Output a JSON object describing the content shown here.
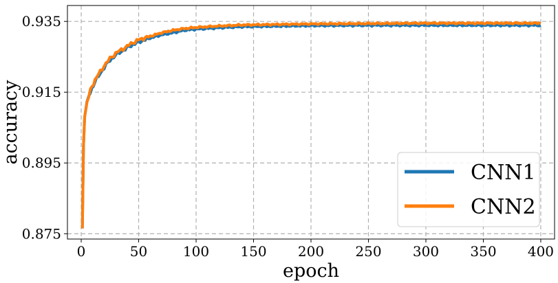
{
  "chart_data": {
    "type": "line",
    "xlabel": "epoch",
    "ylabel": "accuracy",
    "xlim": [
      -12,
      412
    ],
    "ylim": [
      0.8735,
      0.9395
    ],
    "xticks": [
      0,
      50,
      100,
      150,
      200,
      250,
      300,
      350,
      400
    ],
    "yticks": [
      0.875,
      0.895,
      0.915,
      0.935
    ],
    "ytick_labels": [
      "0.875",
      "0.895",
      "0.915",
      "0.935"
    ],
    "grid": true,
    "legend_position": "bottom-right",
    "series": [
      {
        "name": "CNN1",
        "color": "#1f77b4",
        "points": [
          [
            1,
            0.8765
          ],
          [
            2,
            0.9
          ],
          [
            3,
            0.908
          ],
          [
            5,
            0.912
          ],
          [
            8,
            0.915
          ],
          [
            12,
            0.918
          ],
          [
            15,
            0.9195
          ],
          [
            20,
            0.922
          ],
          [
            25,
            0.924
          ],
          [
            30,
            0.9255
          ],
          [
            35,
            0.9265
          ],
          [
            40,
            0.9275
          ],
          [
            45,
            0.9285
          ],
          [
            50,
            0.9292
          ],
          [
            60,
            0.9303
          ],
          [
            70,
            0.9312
          ],
          [
            80,
            0.9318
          ],
          [
            90,
            0.9325
          ],
          [
            100,
            0.9328
          ],
          [
            120,
            0.9332
          ],
          [
            140,
            0.9335
          ],
          [
            160,
            0.9336
          ],
          [
            180,
            0.9337
          ],
          [
            200,
            0.9338
          ],
          [
            250,
            0.9339
          ],
          [
            300,
            0.9339
          ],
          [
            350,
            0.9339
          ],
          [
            400,
            0.9339
          ]
        ]
      },
      {
        "name": "CNN2",
        "color": "#ff7f0e",
        "points": [
          [
            1,
            0.8765
          ],
          [
            2,
            0.9
          ],
          [
            3,
            0.908
          ],
          [
            5,
            0.912
          ],
          [
            8,
            0.9155
          ],
          [
            12,
            0.9185
          ],
          [
            15,
            0.92
          ],
          [
            20,
            0.9225
          ],
          [
            25,
            0.9245
          ],
          [
            30,
            0.926
          ],
          [
            35,
            0.927
          ],
          [
            40,
            0.928
          ],
          [
            45,
            0.929
          ],
          [
            50,
            0.9298
          ],
          [
            60,
            0.9308
          ],
          [
            70,
            0.9318
          ],
          [
            80,
            0.9325
          ],
          [
            90,
            0.933
          ],
          [
            100,
            0.9333
          ],
          [
            120,
            0.9337
          ],
          [
            140,
            0.934
          ],
          [
            160,
            0.9341
          ],
          [
            180,
            0.9342
          ],
          [
            200,
            0.9343
          ],
          [
            250,
            0.9344
          ],
          [
            300,
            0.9345
          ],
          [
            350,
            0.9345
          ],
          [
            400,
            0.9345
          ]
        ]
      }
    ]
  }
}
